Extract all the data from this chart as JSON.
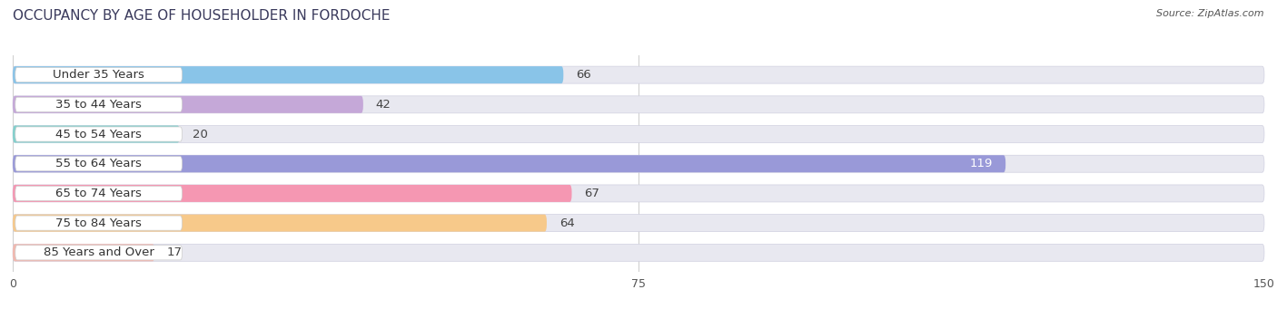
{
  "title": "OCCUPANCY BY AGE OF HOUSEHOLDER IN FORDOCHE",
  "source": "Source: ZipAtlas.com",
  "categories": [
    "Under 35 Years",
    "35 to 44 Years",
    "45 to 54 Years",
    "55 to 64 Years",
    "65 to 74 Years",
    "75 to 84 Years",
    "85 Years and Over"
  ],
  "values": [
    66,
    42,
    20,
    119,
    67,
    64,
    17
  ],
  "bar_colors": [
    "#89c4e8",
    "#c5a8d8",
    "#82d0cc",
    "#9999d8",
    "#f597b2",
    "#f7c98a",
    "#f2b8ae"
  ],
  "bar_bg_color": "#e8e8f0",
  "label_bg_color": "#ffffff",
  "xlim": [
    0,
    150
  ],
  "xticks": [
    0,
    75,
    150
  ],
  "label_fontsize": 9.5,
  "title_fontsize": 11,
  "value_color_inside": "#ffffff",
  "value_color_outside": "#444444",
  "background_color": "#ffffff",
  "title_color": "#3a3a5c",
  "source_color": "#555555"
}
